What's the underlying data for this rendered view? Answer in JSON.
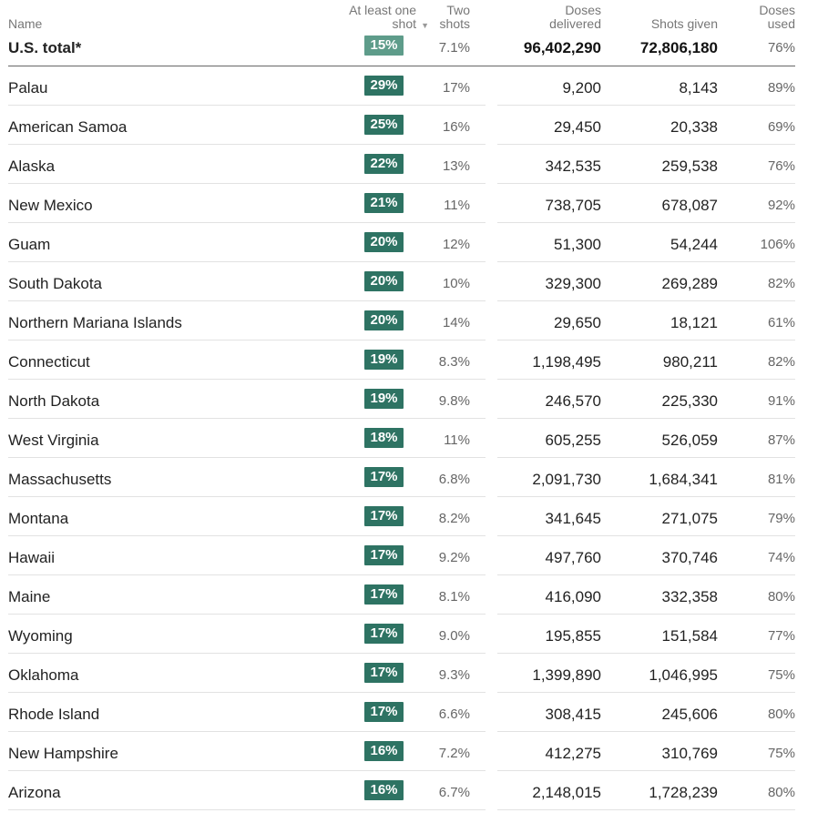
{
  "headers": {
    "name": "Name",
    "first_shot": [
      "At least one",
      "shot"
    ],
    "sort_arrow": "▼",
    "two_shots": [
      "Two",
      "shots"
    ],
    "doses_delivered": [
      "Doses",
      "delivered"
    ],
    "shots_given": "Shots given",
    "doses_used": [
      "Doses",
      "used"
    ]
  },
  "total": {
    "name": "U.S. total*",
    "first": "15%",
    "two": "7.1%",
    "delivered": "96,402,290",
    "given": "72,806,180",
    "used": "76%",
    "color": "#5e9c8a"
  },
  "rows": [
    {
      "name": "Palau",
      "first": "29%",
      "two": "17%",
      "delivered": "9,200",
      "given": "8,143",
      "used": "89%"
    },
    {
      "name": "American Samoa",
      "first": "25%",
      "two": "16%",
      "delivered": "29,450",
      "given": "20,338",
      "used": "69%"
    },
    {
      "name": "Alaska",
      "first": "22%",
      "two": "13%",
      "delivered": "342,535",
      "given": "259,538",
      "used": "76%"
    },
    {
      "name": "New Mexico",
      "first": "21%",
      "two": "11%",
      "delivered": "738,705",
      "given": "678,087",
      "used": "92%"
    },
    {
      "name": "Guam",
      "first": "20%",
      "two": "12%",
      "delivered": "51,300",
      "given": "54,244",
      "used": "106%"
    },
    {
      "name": "South Dakota",
      "first": "20%",
      "two": "10%",
      "delivered": "329,300",
      "given": "269,289",
      "used": "82%"
    },
    {
      "name": "Northern Mariana Islands",
      "first": "20%",
      "two": "14%",
      "delivered": "29,650",
      "given": "18,121",
      "used": "61%"
    },
    {
      "name": "Connecticut",
      "first": "19%",
      "two": "8.3%",
      "delivered": "1,198,495",
      "given": "980,211",
      "used": "82%"
    },
    {
      "name": "North Dakota",
      "first": "19%",
      "two": "9.8%",
      "delivered": "246,570",
      "given": "225,330",
      "used": "91%"
    },
    {
      "name": "West Virginia",
      "first": "18%",
      "two": "11%",
      "delivered": "605,255",
      "given": "526,059",
      "used": "87%"
    },
    {
      "name": "Massachusetts",
      "first": "17%",
      "two": "6.8%",
      "delivered": "2,091,730",
      "given": "1,684,341",
      "used": "81%"
    },
    {
      "name": "Montana",
      "first": "17%",
      "two": "8.2%",
      "delivered": "341,645",
      "given": "271,075",
      "used": "79%"
    },
    {
      "name": "Hawaii",
      "first": "17%",
      "two": "9.2%",
      "delivered": "497,760",
      "given": "370,746",
      "used": "74%"
    },
    {
      "name": "Maine",
      "first": "17%",
      "two": "8.1%",
      "delivered": "416,090",
      "given": "332,358",
      "used": "80%"
    },
    {
      "name": "Wyoming",
      "first": "17%",
      "two": "9.0%",
      "delivered": "195,855",
      "given": "151,584",
      "used": "77%"
    },
    {
      "name": "Oklahoma",
      "first": "17%",
      "two": "9.3%",
      "delivered": "1,399,890",
      "given": "1,046,995",
      "used": "75%"
    },
    {
      "name": "Rhode Island",
      "first": "17%",
      "two": "6.6%",
      "delivered": "308,415",
      "given": "245,606",
      "used": "80%"
    },
    {
      "name": "New Hampshire",
      "first": "16%",
      "two": "7.2%",
      "delivered": "412,275",
      "given": "310,769",
      "used": "75%"
    },
    {
      "name": "Arizona",
      "first": "16%",
      "two": "6.7%",
      "delivered": "2,148,015",
      "given": "1,728,239",
      "used": "80%"
    }
  ],
  "colors": {
    "badge": "#2e7363",
    "total_badge": "#5e9c8a"
  }
}
